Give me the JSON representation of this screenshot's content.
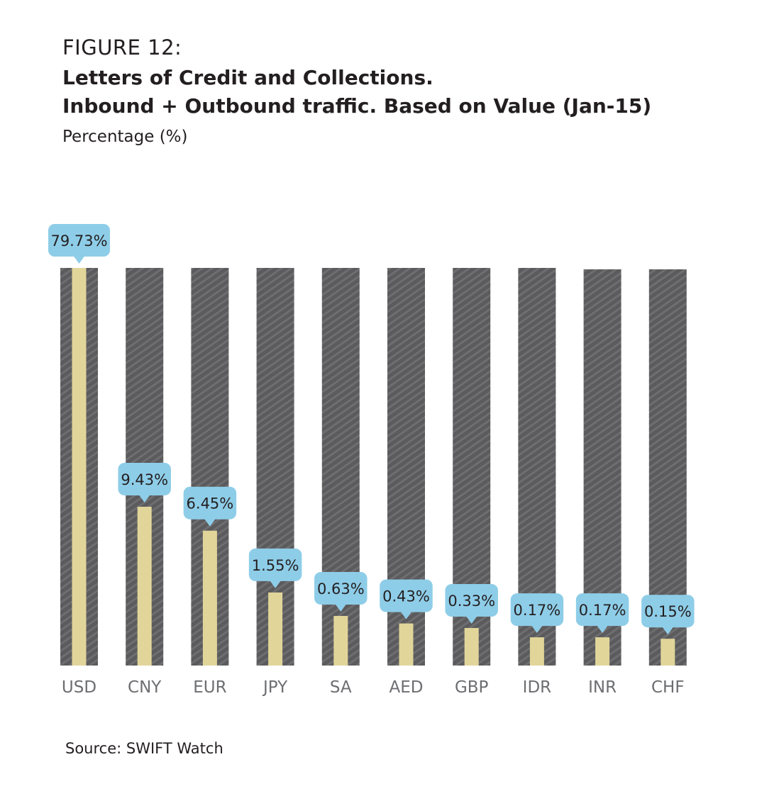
{
  "figure_label": "FIGURE 12:",
  "title_line1": "Letters of Credit and Collections.",
  "title_line2": "Inbound + Outbound traffic. Based on Value (Jan-15)",
  "subtitle": "Percentage (%)",
  "source": "Source: SWIFT Watch",
  "colors": {
    "track": "#5b5b5d",
    "track_stripe": "#6e6e70",
    "bar": "#e1d59a",
    "label_bubble": "#8ecde8"
  },
  "chart_data": {
    "type": "bar",
    "title": "Letters of Credit and Collections. Inbound + Outbound traffic. Based on Value (Jan-15)",
    "ylabel": "Percentage (%)",
    "categories": [
      "USD",
      "CNY",
      "EUR",
      "JPY",
      "SA",
      "AED",
      "GBP",
      "IDR",
      "INR",
      "CHF"
    ],
    "values": [
      79.73,
      9.43,
      6.45,
      1.55,
      0.63,
      0.43,
      0.33,
      0.17,
      0.17,
      0.15
    ],
    "data_labels": [
      "79.73%",
      "9.43%",
      "6.45%",
      "1.55%",
      "0.63%",
      "0.43%",
      "0.33%",
      "0.17%",
      "0.17%",
      "0.15%"
    ],
    "grid": false,
    "legend": "none"
  }
}
